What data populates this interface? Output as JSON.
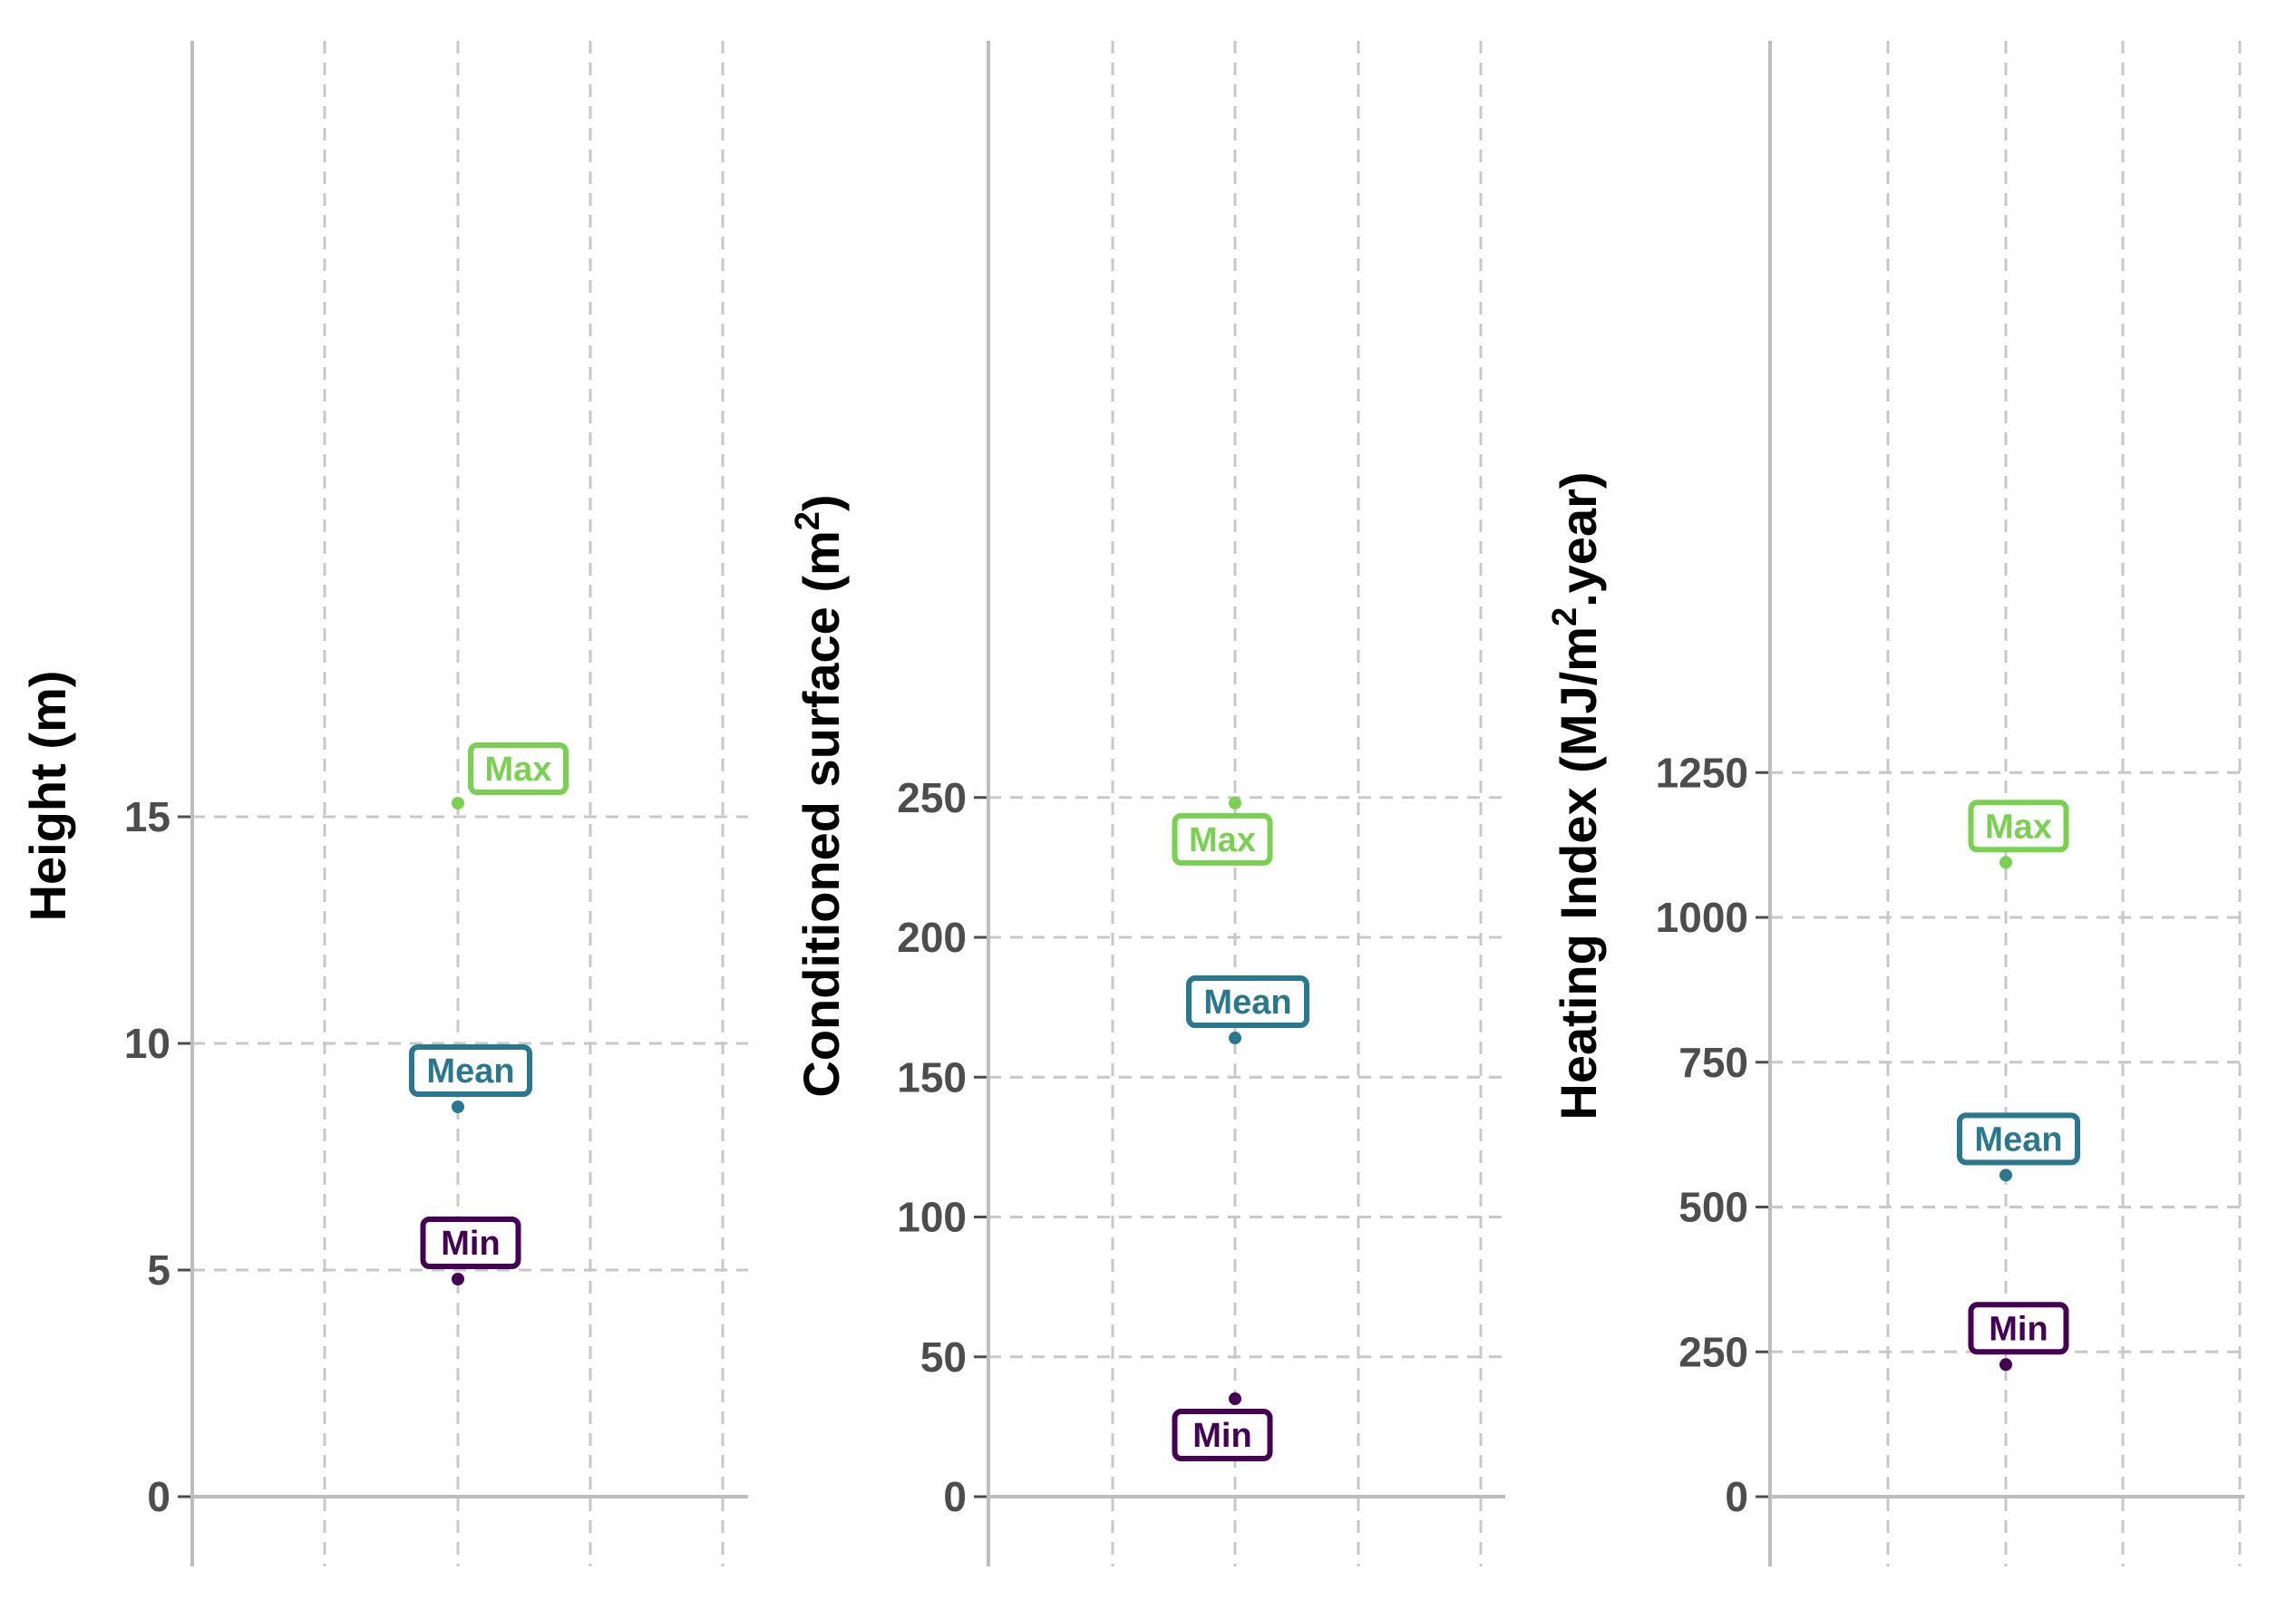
{
  "chart_data": [
    {
      "type": "scatter",
      "ylabel": {
        "prefix": "Height (m)",
        "sup": "",
        "suffix": ""
      },
      "ylim": [
        0,
        16
      ],
      "yticks": [
        "0",
        "5",
        "10",
        "15"
      ],
      "ytick_values": [
        0,
        5,
        10,
        15
      ],
      "grid": true,
      "points": [
        {
          "label": "Max",
          "value": 15.3,
          "color": "#7ad151"
        },
        {
          "label": "Mean",
          "value": 8.6,
          "color": "#2a788e"
        },
        {
          "label": "Min",
          "value": 4.8,
          "color": "#440154"
        }
      ]
    },
    {
      "type": "scatter",
      "ylabel": {
        "prefix": "Conditioned surface (m",
        "sup": "2",
        "suffix": ")"
      },
      "ylim": [
        0,
        255
      ],
      "yticks": [
        "0",
        "50",
        "100",
        "150",
        "200",
        "250"
      ],
      "ytick_values": [
        0,
        50,
        100,
        150,
        200,
        250
      ],
      "grid": true,
      "points": [
        {
          "label": "Max",
          "value": 248,
          "color": "#7ad151"
        },
        {
          "label": "Mean",
          "value": 164,
          "color": "#2a788e"
        },
        {
          "label": "Min",
          "value": 35,
          "color": "#440154"
        }
      ]
    },
    {
      "type": "scatter",
      "ylabel": {
        "prefix": "Heating Index (MJ/m",
        "sup": "2",
        "suffix": ".year)"
      },
      "ylim": [
        0,
        1260
      ],
      "yticks": [
        "0",
        "250",
        "500",
        "750",
        "1000",
        "1250"
      ],
      "ytick_values": [
        0,
        250,
        500,
        750,
        1000,
        1250
      ],
      "grid": true,
      "points": [
        {
          "label": "Max",
          "value": 1095,
          "color": "#7ad151"
        },
        {
          "label": "Mean",
          "value": 555,
          "color": "#2a788e"
        },
        {
          "label": "Min",
          "value": 228,
          "color": "#440154"
        }
      ]
    }
  ]
}
